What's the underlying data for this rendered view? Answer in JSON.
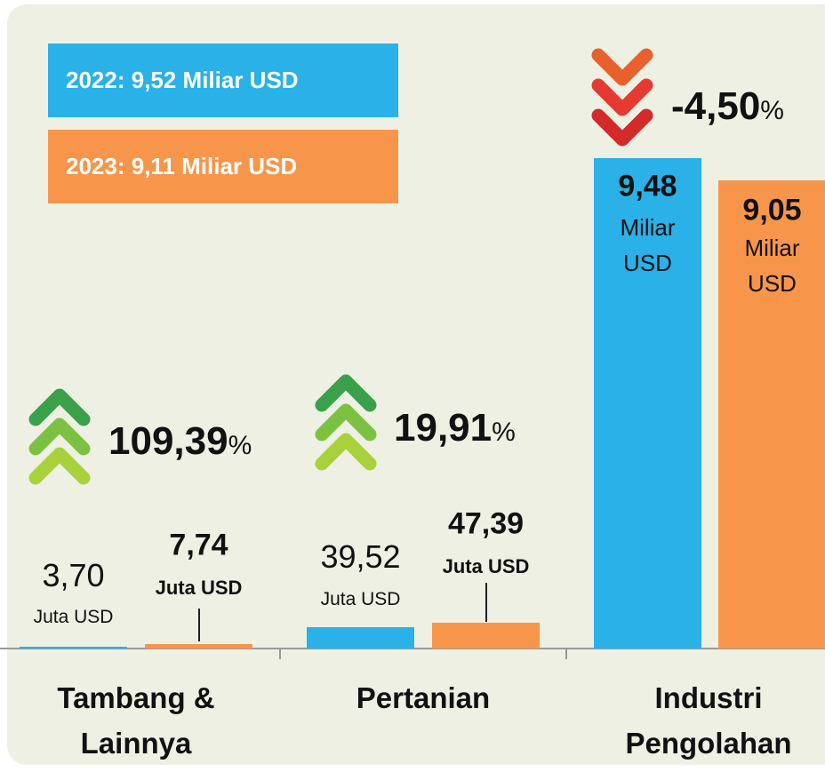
{
  "chart_data": {
    "type": "bar",
    "categories": [
      "Tambang & Lainnya",
      "Pertanian",
      "Industri Pengolahan"
    ],
    "series": [
      {
        "name": "2022: 9,52 Miliar USD",
        "color": "#29b1e8",
        "values": [
          3.7,
          39.52,
          9.48
        ],
        "value_labels": [
          "3,70",
          "39,52",
          "9,48"
        ]
      },
      {
        "name": "2023: 9,11 Miliar USD",
        "color": "#f7964a",
        "values": [
          7.74,
          47.39,
          9.05
        ],
        "value_labels": [
          "7,74",
          "47,39",
          "9,05"
        ]
      }
    ],
    "units": [
      "Juta USD",
      "Juta USD",
      "Miliar USD"
    ],
    "changes": [
      109.39,
      19.91,
      -4.5
    ],
    "change_labels": [
      "109,39",
      "19,91",
      "-4,50"
    ],
    "change_unit": "%"
  }
}
